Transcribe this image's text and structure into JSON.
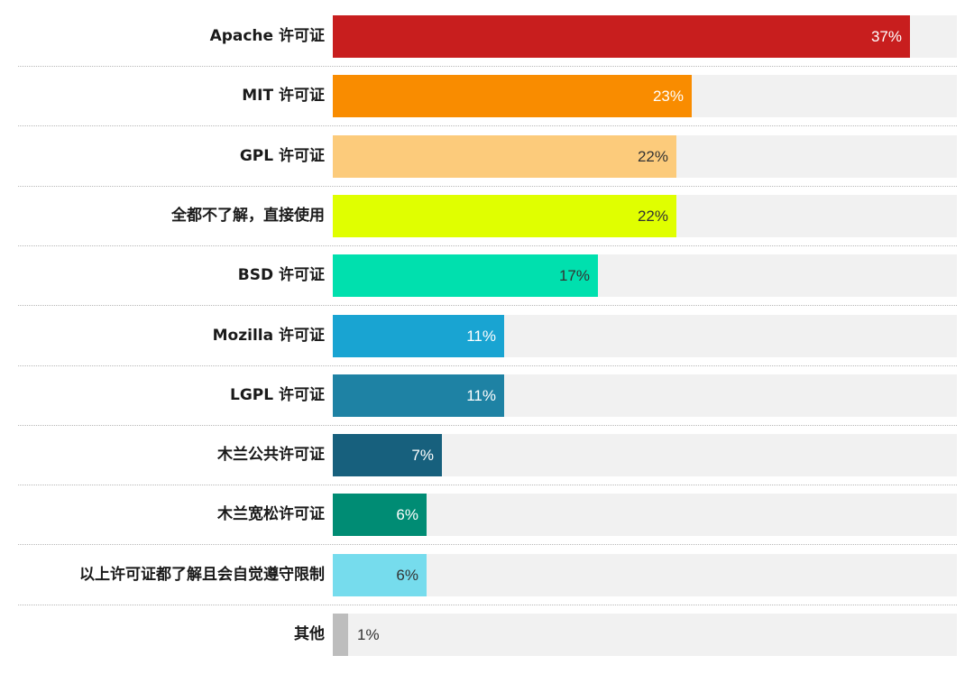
{
  "chart_data": {
    "type": "bar",
    "orientation": "horizontal",
    "xlim": [
      0,
      100
    ],
    "categories": [
      "Apache 许可证",
      "MIT 许可证",
      "GPL 许可证",
      "全都不了解，直接使用",
      "BSD 许可证",
      "Mozilla 许可证",
      "LGPL 许可证",
      "木兰公共许可证",
      "木兰宽松许可证",
      "以上许可证都了解且会自觉遵守限制",
      "其他"
    ],
    "values": [
      37,
      23,
      22,
      22,
      17,
      11,
      11,
      7,
      6,
      6,
      1
    ],
    "value_labels": [
      "37%",
      "23%",
      "22%",
      "22%",
      "17%",
      "11%",
      "11%",
      "7%",
      "6%",
      "6%",
      "1%"
    ],
    "colors": [
      "#c81e1e",
      "#f98c00",
      "#fccb7b",
      "#e0ff00",
      "#00e0ae",
      "#19a4d2",
      "#1e82a4",
      "#17607d",
      "#008c74",
      "#76dced",
      "#bdbdbd"
    ],
    "value_label_colors": [
      "#ffffff",
      "#ffffff",
      "#333333",
      "#333333",
      "#333333",
      "#ffffff",
      "#ffffff",
      "#ffffff",
      "#ffffff",
      "#333333",
      "#333333"
    ],
    "track_color": "#f1f1f1",
    "grid": false,
    "legend": "none"
  }
}
